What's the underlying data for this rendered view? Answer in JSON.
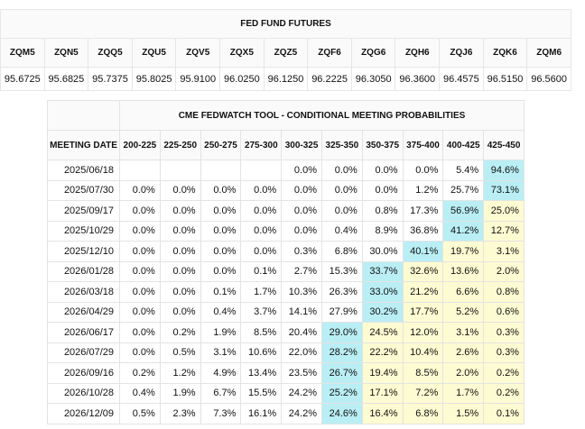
{
  "futures": {
    "title": "FED FUND FUTURES",
    "codes": [
      "ZQM5",
      "ZQN5",
      "ZQQ5",
      "ZQU5",
      "ZQV5",
      "ZQX5",
      "ZQZ5",
      "ZQF6",
      "ZQG6",
      "ZQH6",
      "ZQJ6",
      "ZQK6",
      "ZQM6"
    ],
    "prices": [
      "95.6725",
      "95.6825",
      "95.7375",
      "95.8025",
      "95.9100",
      "96.0250",
      "96.1250",
      "96.2225",
      "96.3050",
      "96.3600",
      "96.4575",
      "96.5150",
      "96.5600"
    ]
  },
  "fedwatch": {
    "title": "CME FEDWATCH TOOL - CONDITIONAL MEETING PROBABILITIES",
    "date_header": "MEETING DATE",
    "ranges": [
      "200-225",
      "225-250",
      "250-275",
      "275-300",
      "300-325",
      "325-350",
      "350-375",
      "375-400",
      "400-425",
      "425-450"
    ],
    "rows": [
      {
        "date": "2025/06/18",
        "cells": [
          "",
          "",
          "",
          "",
          "0.0%",
          "0.0%",
          "0.0%",
          "0.0%",
          "5.4%",
          "94.6%"
        ],
        "max": 9
      },
      {
        "date": "2025/07/30",
        "cells": [
          "0.0%",
          "0.0%",
          "0.0%",
          "0.0%",
          "0.0%",
          "0.0%",
          "0.0%",
          "1.2%",
          "25.7%",
          "73.1%"
        ],
        "max": 9
      },
      {
        "date": "2025/09/17",
        "cells": [
          "0.0%",
          "0.0%",
          "0.0%",
          "0.0%",
          "0.0%",
          "0.0%",
          "0.8%",
          "17.3%",
          "56.9%",
          "25.0%"
        ],
        "max": 8
      },
      {
        "date": "2025/10/29",
        "cells": [
          "0.0%",
          "0.0%",
          "0.0%",
          "0.0%",
          "0.0%",
          "0.4%",
          "8.9%",
          "36.8%",
          "41.2%",
          "12.7%"
        ],
        "max": 8
      },
      {
        "date": "2025/12/10",
        "cells": [
          "0.0%",
          "0.0%",
          "0.0%",
          "0.0%",
          "0.3%",
          "6.8%",
          "30.0%",
          "40.1%",
          "19.7%",
          "3.1%"
        ],
        "max": 7
      },
      {
        "date": "2026/01/28",
        "cells": [
          "0.0%",
          "0.0%",
          "0.0%",
          "0.1%",
          "2.7%",
          "15.3%",
          "33.7%",
          "32.6%",
          "13.6%",
          "2.0%"
        ],
        "max": 6
      },
      {
        "date": "2026/03/18",
        "cells": [
          "0.0%",
          "0.0%",
          "0.1%",
          "1.7%",
          "10.3%",
          "26.3%",
          "33.0%",
          "21.2%",
          "6.6%",
          "0.8%"
        ],
        "max": 6
      },
      {
        "date": "2026/04/29",
        "cells": [
          "0.0%",
          "0.0%",
          "0.4%",
          "3.7%",
          "14.1%",
          "27.9%",
          "30.2%",
          "17.7%",
          "5.2%",
          "0.6%"
        ],
        "max": 6
      },
      {
        "date": "2026/06/17",
        "cells": [
          "0.0%",
          "0.2%",
          "1.9%",
          "8.5%",
          "20.4%",
          "29.0%",
          "24.5%",
          "12.0%",
          "3.1%",
          "0.3%"
        ],
        "max": 5
      },
      {
        "date": "2026/07/29",
        "cells": [
          "0.0%",
          "0.5%",
          "3.1%",
          "10.6%",
          "22.0%",
          "28.2%",
          "22.2%",
          "10.4%",
          "2.6%",
          "0.3%"
        ],
        "max": 5
      },
      {
        "date": "2026/09/16",
        "cells": [
          "0.2%",
          "1.2%",
          "4.9%",
          "13.4%",
          "23.5%",
          "26.7%",
          "19.4%",
          "8.5%",
          "2.0%",
          "0.2%"
        ],
        "max": 5
      },
      {
        "date": "2026/10/28",
        "cells": [
          "0.4%",
          "1.9%",
          "6.7%",
          "15.5%",
          "24.2%",
          "25.2%",
          "17.1%",
          "7.2%",
          "1.7%",
          "0.2%"
        ],
        "max": 5
      },
      {
        "date": "2026/12/09",
        "cells": [
          "0.5%",
          "2.3%",
          "7.3%",
          "16.1%",
          "24.2%",
          "24.6%",
          "16.4%",
          "6.8%",
          "1.5%",
          "0.1%"
        ],
        "max": 5
      }
    ],
    "colors": {
      "highlight": "#b9eef4",
      "current_range_fill": "#fdfbd2"
    }
  }
}
